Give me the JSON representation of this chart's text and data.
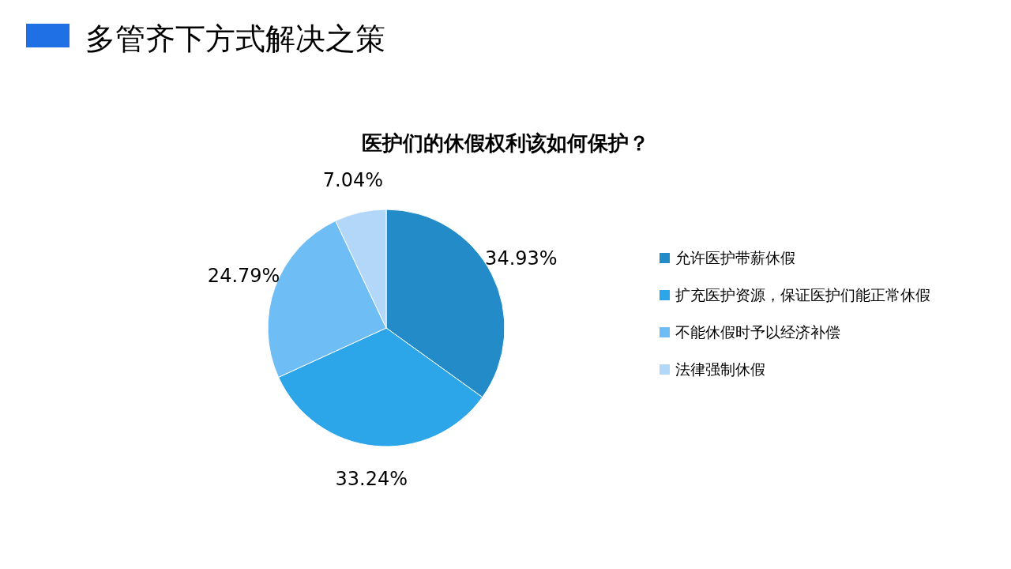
{
  "chart_data": {
    "type": "pie",
    "title": "多管齐下方式解决之策",
    "subtitle": "医护们的休假权利该如何保护？",
    "categories": [
      "允许医护带薪休假",
      "扩充医护资源，保证医护们能正常休假",
      "不能休假时予以经济补偿",
      "法律强制休假"
    ],
    "values": [
      34.93,
      33.24,
      24.79,
      7.04
    ],
    "colors": [
      "#238bc7",
      "#2ca6e8",
      "#6fbdf5",
      "#b3d7f9"
    ],
    "value_labels": [
      "34.93%",
      "33.24%",
      "24.79%",
      "7.04%"
    ],
    "legend": "right"
  }
}
